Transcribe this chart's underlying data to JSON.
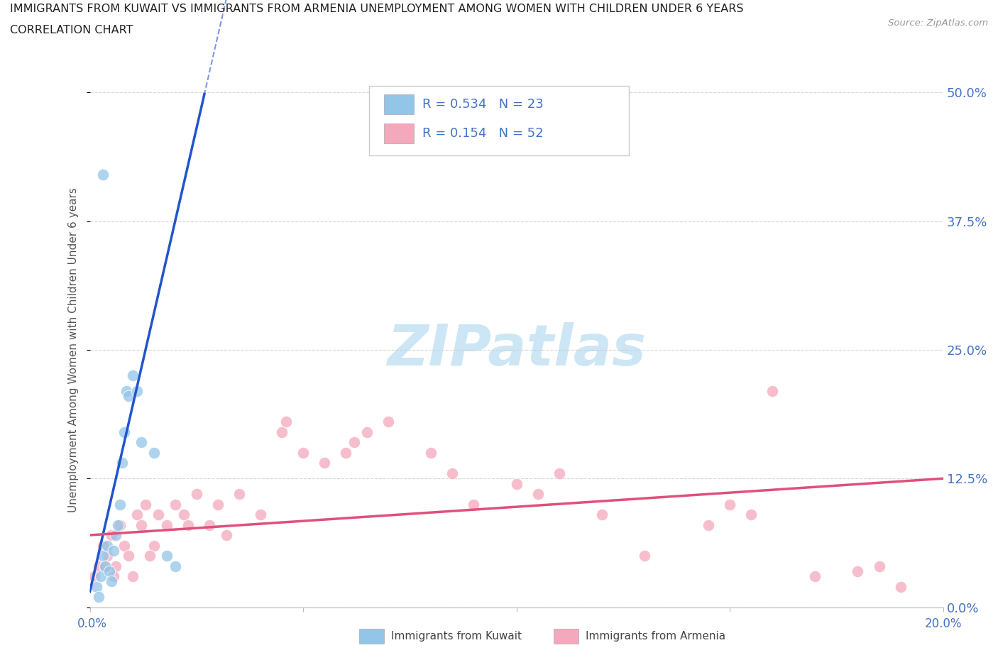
{
  "title_line1": "IMMIGRANTS FROM KUWAIT VS IMMIGRANTS FROM ARMENIA UNEMPLOYMENT AMONG WOMEN WITH CHILDREN UNDER 6 YEARS",
  "title_line2": "CORRELATION CHART",
  "source": "Source: ZipAtlas.com",
  "ylabel": "Unemployment Among Women with Children Under 6 years",
  "ytick_values": [
    0.0,
    12.5,
    25.0,
    37.5,
    50.0
  ],
  "xlim": [
    0.0,
    20.0
  ],
  "ylim": [
    0.0,
    50.0
  ],
  "legend_r1": "R = 0.534   N = 23",
  "legend_r2": "R = 0.154   N = 52",
  "color_kuwait": "#92C5E8",
  "color_armenia": "#F4A8BC",
  "trendline_color_kuwait": "#2255CC",
  "trendline_color_armenia": "#E0507A",
  "watermark_color": "#C8E4F4",
  "right_label_color": "#4472C4",
  "kuwait_x": [
    0.15,
    0.2,
    0.25,
    0.3,
    0.35,
    0.4,
    0.45,
    0.5,
    0.55,
    0.6,
    0.65,
    0.7,
    0.75,
    0.8,
    0.85,
    0.9,
    1.0,
    1.1,
    1.2,
    1.5,
    1.8,
    2.0,
    0.3
  ],
  "kuwait_y": [
    2.0,
    1.0,
    3.0,
    5.0,
    4.0,
    6.0,
    3.5,
    2.5,
    5.5,
    7.0,
    8.0,
    10.0,
    14.0,
    17.0,
    21.0,
    20.5,
    22.5,
    21.0,
    16.0,
    15.0,
    5.0,
    4.0,
    42.0
  ],
  "armenia_x": [
    0.1,
    0.2,
    0.3,
    0.4,
    0.5,
    0.6,
    0.7,
    0.8,
    0.9,
    1.0,
    1.1,
    1.2,
    1.3,
    1.5,
    1.6,
    1.8,
    2.0,
    2.2,
    2.5,
    2.8,
    3.0,
    3.5,
    4.0,
    4.5,
    4.6,
    5.0,
    5.5,
    6.0,
    6.2,
    6.5,
    7.0,
    8.0,
    8.5,
    9.0,
    10.0,
    10.5,
    11.0,
    12.0,
    13.0,
    14.5,
    15.0,
    15.5,
    16.0,
    17.0,
    18.0,
    18.5,
    19.0,
    0.35,
    0.55,
    1.4,
    2.3,
    3.2
  ],
  "armenia_y": [
    3.0,
    4.0,
    6.0,
    5.0,
    7.0,
    4.0,
    8.0,
    6.0,
    5.0,
    3.0,
    9.0,
    8.0,
    10.0,
    6.0,
    9.0,
    8.0,
    10.0,
    9.0,
    11.0,
    8.0,
    10.0,
    11.0,
    9.0,
    17.0,
    18.0,
    15.0,
    14.0,
    15.0,
    16.0,
    17.0,
    18.0,
    15.0,
    13.0,
    10.0,
    12.0,
    11.0,
    13.0,
    9.0,
    5.0,
    8.0,
    10.0,
    9.0,
    21.0,
    3.0,
    3.5,
    4.0,
    2.0,
    4.0,
    3.0,
    5.0,
    8.0,
    7.0
  ]
}
